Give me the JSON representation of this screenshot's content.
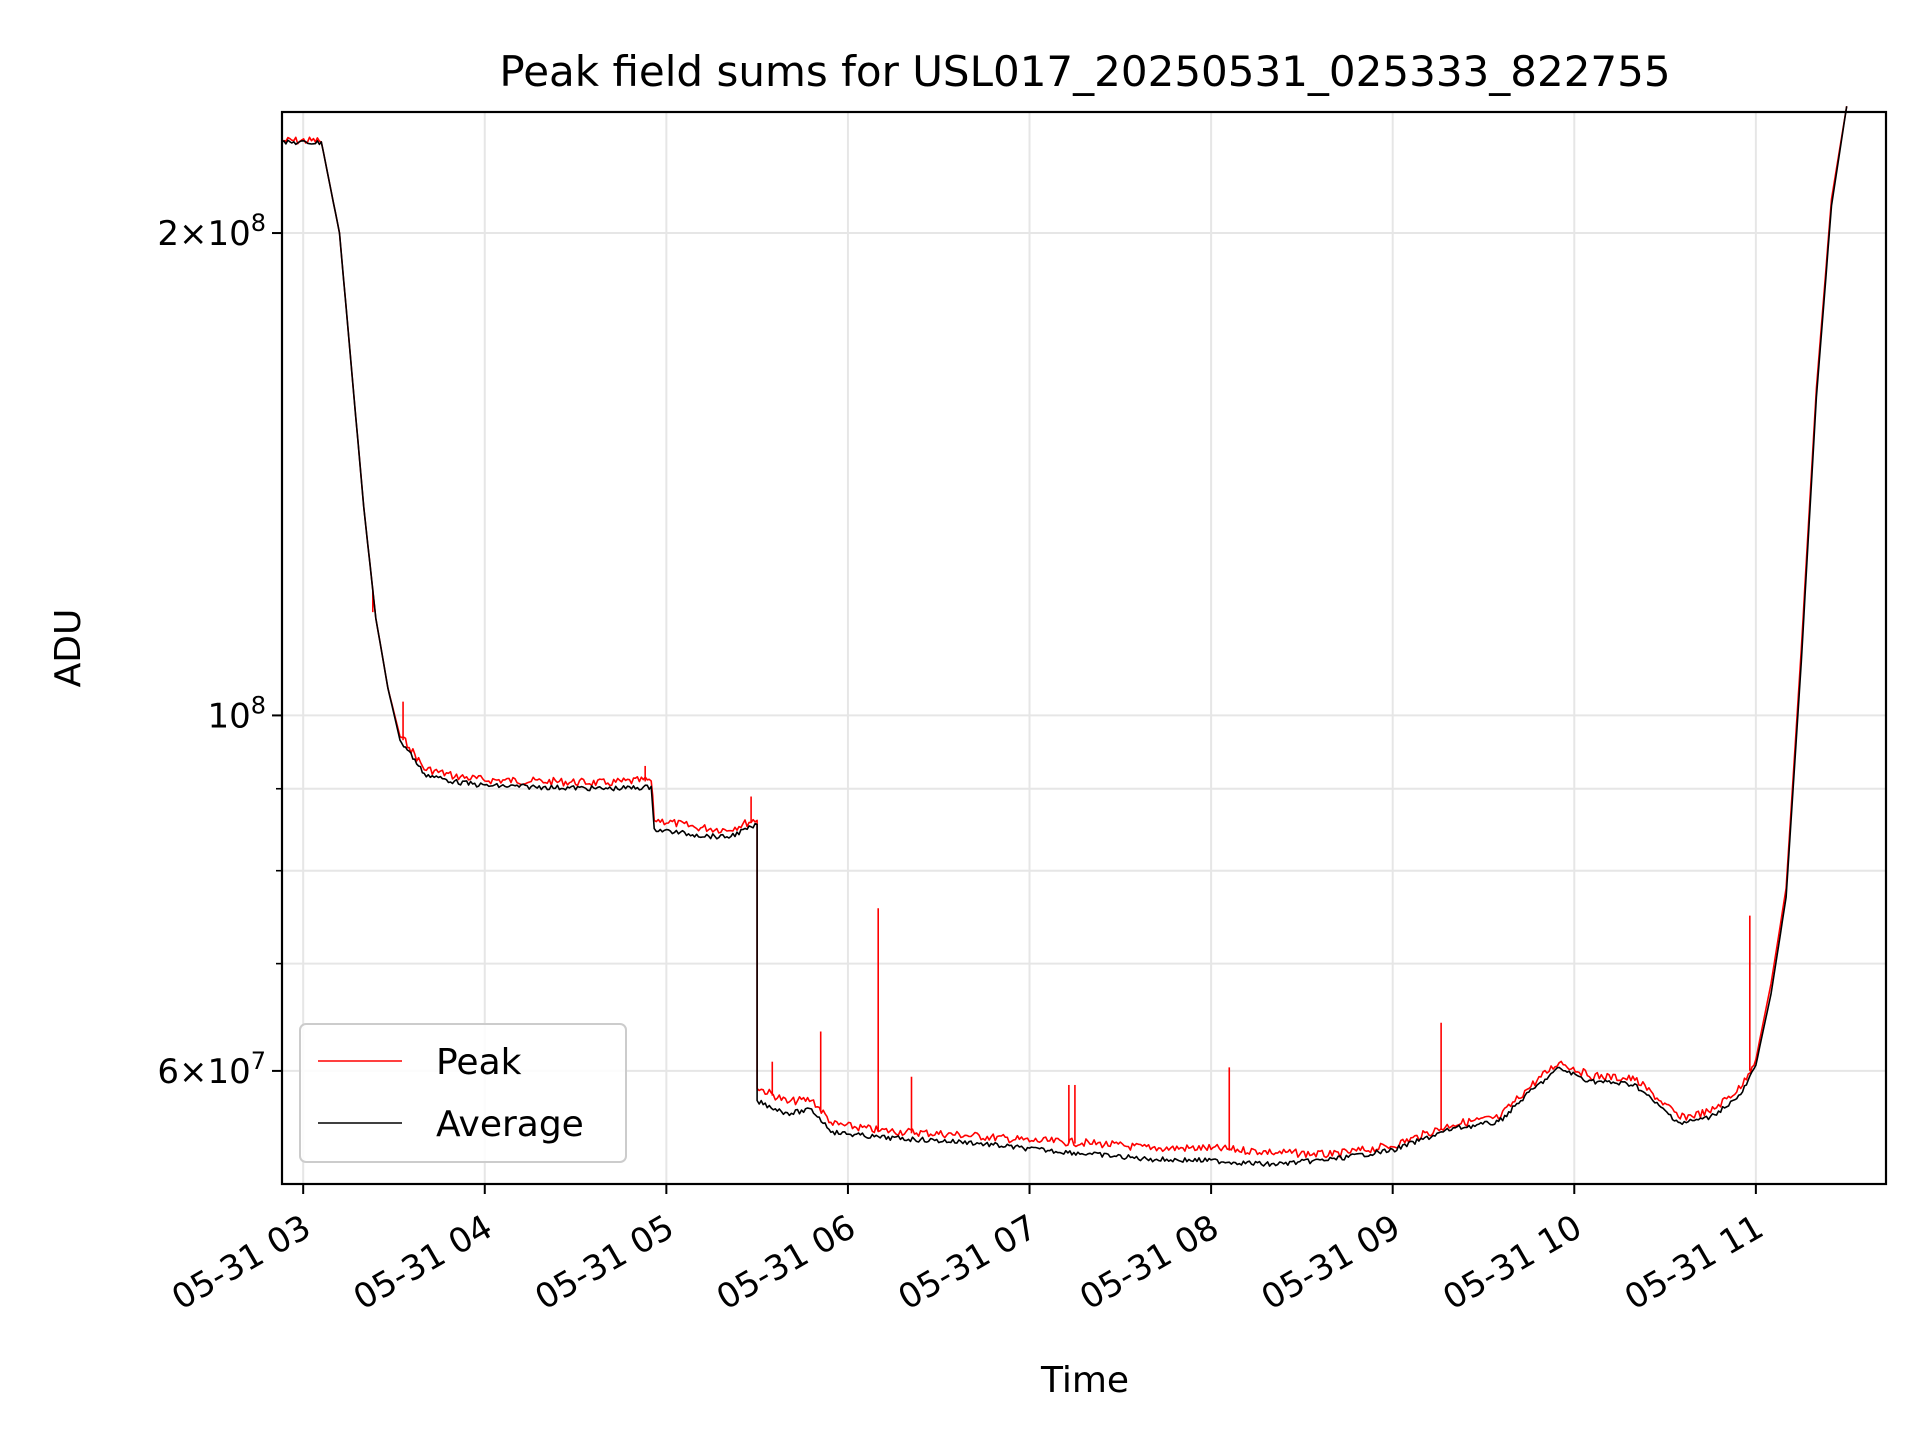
{
  "chart_data": {
    "type": "line",
    "title": "Peak field sums for USL017_20250531_025333_822755",
    "xlabel": "Time",
    "ylabel": "ADU",
    "yscale": "log",
    "xlim": [
      "2025-05-31 02:53",
      "2025-05-31 11:43"
    ],
    "ylim": [
      51000000,
      238000000
    ],
    "grid": true,
    "legend_position": "lower-left",
    "x_ticks": [
      "05-31 03",
      "05-31 04",
      "05-31 05",
      "05-31 06",
      "05-31 07",
      "05-31 08",
      "05-31 09",
      "05-31 10",
      "05-31 11"
    ],
    "y_major_ticks": [
      {
        "value": 200000000,
        "mantissa": "2",
        "exponent": "8"
      },
      {
        "value": 100000000,
        "mantissa": "",
        "exponent": "8"
      },
      {
        "value": 60000000,
        "mantissa": "6",
        "exponent": "7"
      }
    ],
    "y_minor_ticks": [
      90000000,
      80000000,
      70000000
    ],
    "colors": {
      "Peak": "#ff0000",
      "Average": "#000000"
    },
    "series": [
      {
        "name": "Peak",
        "x": [
          "2025-05-31 02:53",
          "2025-05-31 03:06",
          "2025-05-31 03:12",
          "2025-05-31 03:20",
          "2025-05-31 03:24",
          "2025-05-31 03:28",
          "2025-05-31 03:32",
          "2025-05-31 03:35",
          "2025-05-31 03:40",
          "2025-05-31 03:50",
          "2025-05-31 04:00",
          "2025-05-31 04:20",
          "2025-05-31 04:40",
          "2025-05-31 04:55",
          "2025-05-31 04:56",
          "2025-05-31 05:10",
          "2025-05-31 05:20",
          "2025-05-31 05:30",
          "2025-05-31 05:30",
          "2025-05-31 05:40",
          "2025-05-31 05:48",
          "2025-05-31 05:55",
          "2025-05-31 06:10",
          "2025-05-31 06:40",
          "2025-05-31 07:00",
          "2025-05-31 07:20",
          "2025-05-31 07:40",
          "2025-05-31 08:00",
          "2025-05-31 08:20",
          "2025-05-31 08:40",
          "2025-05-31 09:00",
          "2025-05-31 09:20",
          "2025-05-31 09:35",
          "2025-05-31 09:45",
          "2025-05-31 09:55",
          "2025-05-31 10:05",
          "2025-05-31 10:20",
          "2025-05-31 10:28",
          "2025-05-31 10:35",
          "2025-05-31 10:45",
          "2025-05-31 10:55",
          "2025-05-31 11:00",
          "2025-05-31 11:05",
          "2025-05-31 11:10",
          "2025-05-31 11:15",
          "2025-05-31 11:20",
          "2025-05-31 11:25",
          "2025-05-31 11:30"
        ],
        "y": [
          228000000,
          228000000,
          200000000,
          135000000,
          115000000,
          104000000,
          97000000,
          95500000,
          92500000,
          91500000,
          91000000,
          90800000,
          90600000,
          91000000,
          86000000,
          85000000,
          84700000,
          86000000,
          58500000,
          57300000,
          57500000,
          55500000,
          55000000,
          54600000,
          54200000,
          54000000,
          53600000,
          53600000,
          53300000,
          53100000,
          53800000,
          55500000,
          56000000,
          58500000,
          60700000,
          59500000,
          59200000,
          57500000,
          56000000,
          56500000,
          58500000,
          61000000,
          68000000,
          78000000,
          110000000,
          160000000,
          210000000,
          240000000
        ],
        "spikes": [
          {
            "x": "2025-05-31 03:23",
            "y": 116000000
          },
          {
            "x": "2025-05-31 03:33",
            "y": 102000000
          },
          {
            "x": "2025-05-31 04:53",
            "y": 93000000
          },
          {
            "x": "2025-05-31 05:28",
            "y": 89000000
          },
          {
            "x": "2025-05-31 05:35",
            "y": 60800000
          },
          {
            "x": "2025-05-31 05:51",
            "y": 63500000
          },
          {
            "x": "2025-05-31 06:10",
            "y": 75800000
          },
          {
            "x": "2025-05-31 06:21",
            "y": 59500000
          },
          {
            "x": "2025-05-31 07:13",
            "y": 58800000
          },
          {
            "x": "2025-05-31 07:15",
            "y": 58800000
          },
          {
            "x": "2025-05-31 08:06",
            "y": 60300000
          },
          {
            "x": "2025-05-31 09:16",
            "y": 64300000
          },
          {
            "x": "2025-05-31 10:58",
            "y": 75000000
          }
        ]
      },
      {
        "name": "Average",
        "x": [
          "2025-05-31 02:53",
          "2025-05-31 03:06",
          "2025-05-31 03:12",
          "2025-05-31 03:20",
          "2025-05-31 03:24",
          "2025-05-31 03:28",
          "2025-05-31 03:32",
          "2025-05-31 03:35",
          "2025-05-31 03:40",
          "2025-05-31 03:50",
          "2025-05-31 04:00",
          "2025-05-31 04:20",
          "2025-05-31 04:40",
          "2025-05-31 04:55",
          "2025-05-31 04:56",
          "2025-05-31 05:10",
          "2025-05-31 05:20",
          "2025-05-31 05:30",
          "2025-05-31 05:30",
          "2025-05-31 05:40",
          "2025-05-31 05:48",
          "2025-05-31 05:55",
          "2025-05-31 06:10",
          "2025-05-31 06:40",
          "2025-05-31 07:00",
          "2025-05-31 07:20",
          "2025-05-31 07:40",
          "2025-05-31 08:00",
          "2025-05-31 08:20",
          "2025-05-31 08:40",
          "2025-05-31 09:00",
          "2025-05-31 09:20",
          "2025-05-31 09:35",
          "2025-05-31 09:45",
          "2025-05-31 09:55",
          "2025-05-31 10:05",
          "2025-05-31 10:20",
          "2025-05-31 10:28",
          "2025-05-31 10:35",
          "2025-05-31 10:45",
          "2025-05-31 10:55",
          "2025-05-31 11:00",
          "2025-05-31 11:05",
          "2025-05-31 11:10",
          "2025-05-31 11:15",
          "2025-05-31 11:20",
          "2025-05-31 11:25",
          "2025-05-31 11:30"
        ],
        "y": [
          228000000,
          228000000,
          200000000,
          135000000,
          115000000,
          104000000,
          96500000,
          95000000,
          92000000,
          91000000,
          90500000,
          90300000,
          90100000,
          90300000,
          85000000,
          84300000,
          84000000,
          85500000,
          57500000,
          56500000,
          56800000,
          55000000,
          54600000,
          54200000,
          53700000,
          53300000,
          52900000,
          52800000,
          52500000,
          52900000,
          53600000,
          55300000,
          55800000,
          58200000,
          60300000,
          59200000,
          58900000,
          57100000,
          55700000,
          56200000,
          58000000,
          60500000,
          67000000,
          77000000,
          108000000,
          158000000,
          208000000,
          240000000
        ]
      }
    ]
  }
}
